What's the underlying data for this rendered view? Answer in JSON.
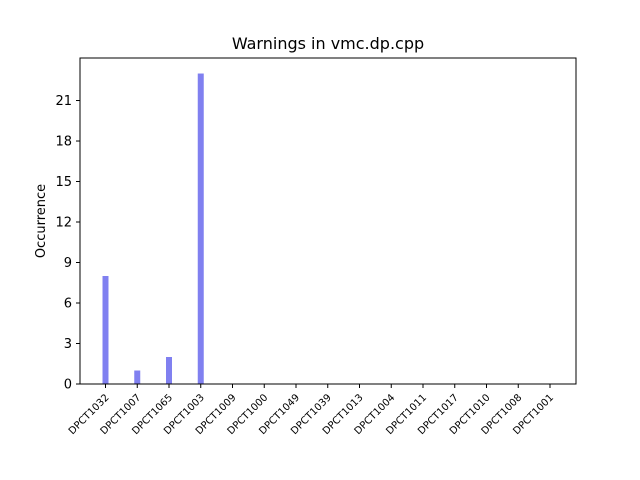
{
  "chart_data": {
    "type": "bar",
    "title": "Warnings in vmc.dp.cpp",
    "xlabel": "",
    "ylabel": "Occurrence",
    "categories": [
      "DPCT1032",
      "DPCT1007",
      "DPCT1065",
      "DPCT1003",
      "DPCT1009",
      "DPCT1000",
      "DPCT1049",
      "DPCT1039",
      "DPCT1013",
      "DPCT1004",
      "DPCT1011",
      "DPCT1017",
      "DPCT1010",
      "DPCT1008",
      "DPCT1001"
    ],
    "values": [
      8,
      1,
      2,
      23,
      0,
      0,
      0,
      0,
      0,
      0,
      0,
      0,
      0,
      0,
      0
    ],
    "ylim": [
      0,
      24.15
    ],
    "yticks": [
      0,
      3,
      6,
      9,
      12,
      15,
      18,
      21
    ],
    "bar_color": "#8080f0",
    "grid": false,
    "legend": "none"
  }
}
